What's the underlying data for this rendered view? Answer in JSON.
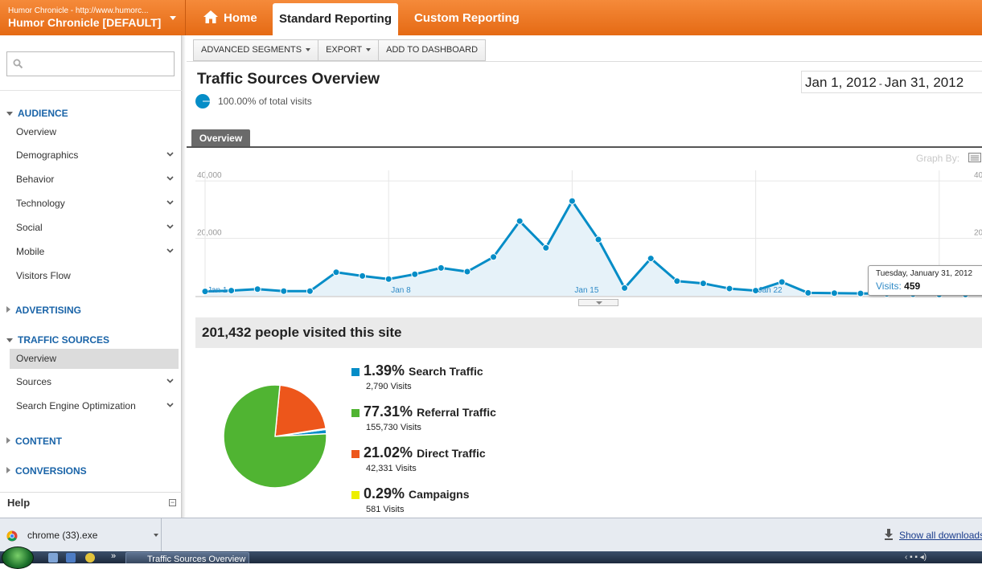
{
  "header": {
    "account_url": "Humor Chronicle - http://www.humorc...",
    "account_name": "Humor Chronicle [DEFAULT]",
    "tabs": [
      {
        "label": "Home"
      },
      {
        "label": "Standard Reporting"
      },
      {
        "label": "Custom Reporting"
      }
    ]
  },
  "sidebar": {
    "search": {
      "value": "",
      "placeholder": ""
    },
    "audience": {
      "label": "AUDIENCE",
      "items": [
        "Overview",
        "Demographics",
        "Behavior",
        "Technology",
        "Social",
        "Mobile",
        "Visitors Flow"
      ]
    },
    "advertising": {
      "label": "ADVERTISING"
    },
    "traffic_sources": {
      "label": "TRAFFIC SOURCES",
      "items": [
        "Overview",
        "Sources",
        "Search Engine Optimization"
      ]
    },
    "content": {
      "label": "CONTENT"
    },
    "conversions": {
      "label": "CONVERSIONS"
    },
    "help": {
      "label": "Help"
    }
  },
  "toolbar": {
    "advanced_segments": "ADVANCED SEGMENTS",
    "export": "EXPORT",
    "add_to_dashboard": "ADD TO DASHBOARD"
  },
  "report": {
    "title": "Traffic Sources Overview",
    "percent_of_total": "100.00% of total visits",
    "date_start": "Jan 1, 2012",
    "date_sep": "-",
    "date_end": "Jan 31, 2012",
    "tab": "Overview",
    "graph_by": "Graph By:"
  },
  "chart_data": {
    "type": "area",
    "series": [
      {
        "name": "Visits",
        "values": [
          1500,
          1800,
          2300,
          1600,
          1600,
          8200,
          6900,
          5800,
          7500,
          9700,
          8400,
          13500,
          26000,
          16700,
          33000,
          19600,
          2700,
          13000,
          5100,
          4300,
          2500,
          1800,
          4800,
          1000,
          900,
          800,
          700,
          600,
          500,
          480,
          459
        ]
      }
    ],
    "x_ticks": [
      "Jan 1",
      "Jan 8",
      "Jan 15",
      "Jan 22"
    ],
    "y_ticks": [
      "20,000",
      "40,000"
    ],
    "y_right_ticks": [
      "20",
      "40"
    ],
    "ylim": [
      0,
      42000
    ],
    "grid": true,
    "color": "#058dc7"
  },
  "tooltip": {
    "date": "Tuesday, January 31, 2012",
    "label": "Visits:",
    "value": "459"
  },
  "visitors_summary": "201,432 people visited this site",
  "pie_data": {
    "type": "pie",
    "slices": [
      {
        "label": "Search Traffic",
        "percent_text": "1.39%",
        "value": 1.39,
        "visits": "2,790 Visits",
        "color": "#058dc7"
      },
      {
        "label": "Referral Traffic",
        "percent_text": "77.31%",
        "value": 77.31,
        "visits": "155,730 Visits",
        "color": "#50b432"
      },
      {
        "label": "Direct Traffic",
        "percent_text": "21.02%",
        "value": 21.02,
        "visits": "42,331 Visits",
        "color": "#ed561b"
      },
      {
        "label": "Campaigns",
        "percent_text": "0.29%",
        "value": 0.29,
        "visits": "581 Visits",
        "color": "#edef00"
      }
    ]
  },
  "download_bar": {
    "file_name": "chrome (33).exe",
    "show_all": "Show all downloads..."
  },
  "taskbar": {
    "active_window": "Traffic Sources Overview"
  }
}
